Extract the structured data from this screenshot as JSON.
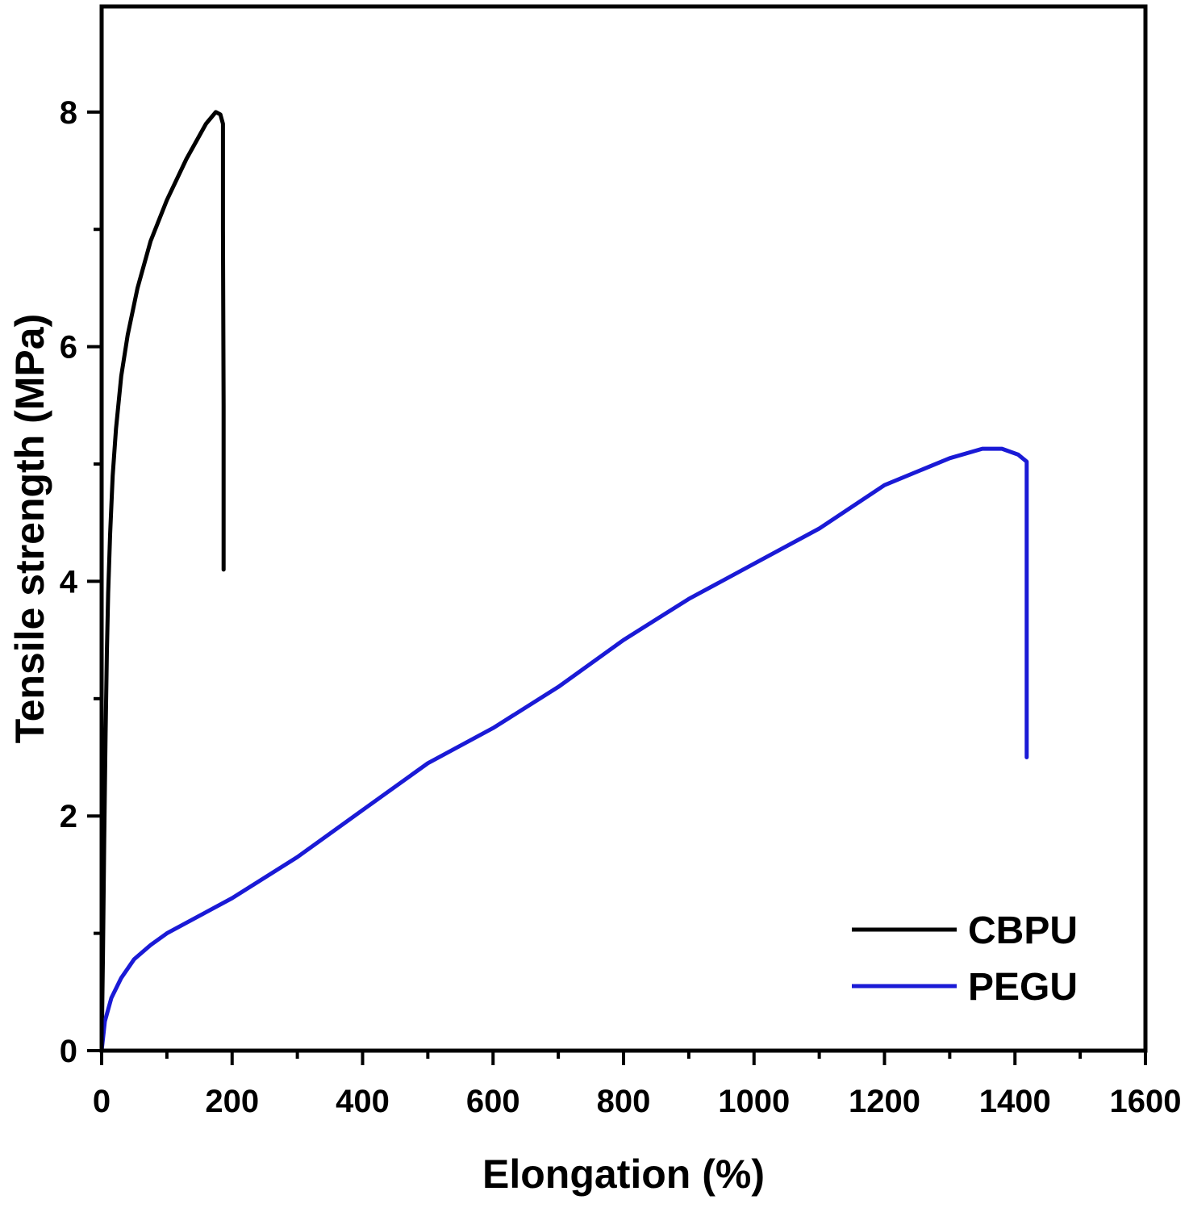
{
  "chart_data": {
    "type": "line",
    "title": "",
    "xlabel": "Elongation (%)",
    "ylabel": "Tensile strength (MPa)",
    "xlim": [
      0,
      1600
    ],
    "ylim": [
      0,
      8.9
    ],
    "x_ticks": [
      0,
      200,
      400,
      600,
      800,
      1000,
      1200,
      1400,
      1600
    ],
    "y_ticks": [
      0,
      2,
      4,
      6,
      8
    ],
    "x_tick_labels": [
      "0",
      "200",
      "400",
      "600",
      "800",
      "1000",
      "1200",
      "1400",
      "1600"
    ],
    "y_tick_labels": [
      "0",
      "2",
      "4",
      "6",
      "8"
    ],
    "grid": false,
    "legend": {
      "position": "bottom-right"
    },
    "series": [
      {
        "name": "CBPU",
        "color": "#000000",
        "points": [
          [
            0,
            0
          ],
          [
            2,
            0.8
          ],
          [
            4,
            1.8
          ],
          [
            6,
            2.7
          ],
          [
            8,
            3.4
          ],
          [
            10,
            3.9
          ],
          [
            13,
            4.4
          ],
          [
            17,
            4.9
          ],
          [
            22,
            5.3
          ],
          [
            30,
            5.75
          ],
          [
            40,
            6.1
          ],
          [
            55,
            6.5
          ],
          [
            75,
            6.9
          ],
          [
            100,
            7.25
          ],
          [
            130,
            7.6
          ],
          [
            160,
            7.9
          ],
          [
            175,
            8.0
          ],
          [
            182,
            7.98
          ],
          [
            186,
            7.9
          ],
          [
            186,
            7.0
          ],
          [
            187,
            5.5
          ],
          [
            187,
            4.1
          ]
        ]
      },
      {
        "name": "PEGU",
        "color": "#1a1ad6",
        "points": [
          [
            0,
            0
          ],
          [
            5,
            0.25
          ],
          [
            15,
            0.45
          ],
          [
            30,
            0.62
          ],
          [
            50,
            0.78
          ],
          [
            75,
            0.9
          ],
          [
            100,
            1.0
          ],
          [
            150,
            1.15
          ],
          [
            200,
            1.3
          ],
          [
            300,
            1.65
          ],
          [
            400,
            2.05
          ],
          [
            500,
            2.45
          ],
          [
            600,
            2.75
          ],
          [
            700,
            3.1
          ],
          [
            800,
            3.5
          ],
          [
            900,
            3.85
          ],
          [
            1000,
            4.15
          ],
          [
            1100,
            4.45
          ],
          [
            1200,
            4.82
          ],
          [
            1300,
            5.05
          ],
          [
            1350,
            5.13
          ],
          [
            1380,
            5.13
          ],
          [
            1405,
            5.08
          ],
          [
            1418,
            5.02
          ],
          [
            1418,
            4.0
          ],
          [
            1418,
            2.5
          ]
        ]
      }
    ]
  }
}
